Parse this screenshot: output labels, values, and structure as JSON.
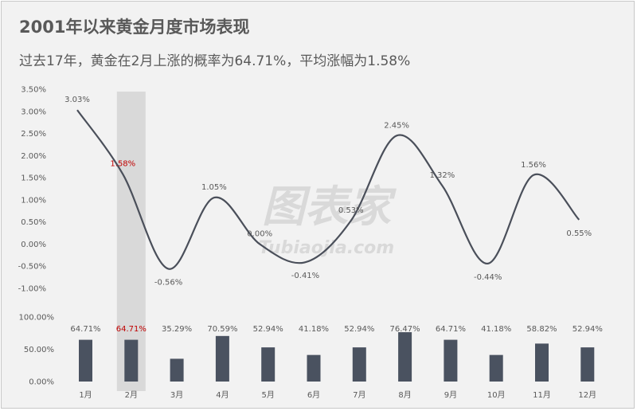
{
  "title": "2001年以来黄金月度市场表现",
  "subtitle": "过去17年，黄金在2月上涨的概率为64.71%，平均涨幅为1.58%",
  "watermark": {
    "main": "图表家",
    "sub": "Tubiaojia.com"
  },
  "colors": {
    "line": "#4a4f5a",
    "bar": "#4a5260",
    "highlight_band": "#d9d9d9",
    "highlight_text": "#c00000",
    "text": "#595959"
  },
  "chart_data": {
    "type": "line+bar",
    "categories": [
      "1月",
      "2月",
      "3月",
      "4月",
      "5月",
      "6月",
      "7月",
      "8月",
      "9月",
      "10月",
      "11月",
      "12月"
    ],
    "highlight_category": "2月",
    "series": [
      {
        "chart": "line",
        "values": [
          3.03,
          1.58,
          -0.56,
          1.05,
          0.0,
          -0.41,
          0.53,
          2.45,
          1.32,
          -0.44,
          1.56,
          0.55
        ],
        "labels": [
          "3.03%",
          "1.58%",
          "-0.56%",
          "1.05%",
          "0.00%",
          "-0.41%",
          "0.53%",
          "2.45%",
          "1.32%",
          "-0.44%",
          "1.56%",
          "0.55%"
        ],
        "ylim": [
          -1.0,
          3.5
        ],
        "yticks": [
          "3.50%",
          "3.00%",
          "2.50%",
          "2.00%",
          "1.50%",
          "1.00%",
          "0.50%",
          "0.00%",
          "-0.50%",
          "-1.00%"
        ]
      },
      {
        "chart": "bar",
        "values": [
          64.71,
          64.71,
          35.29,
          70.59,
          52.94,
          41.18,
          52.94,
          76.47,
          64.71,
          41.18,
          58.82,
          52.94
        ],
        "labels": [
          "64.71%",
          "64.71%",
          "35.29%",
          "70.59%",
          "52.94%",
          "41.18%",
          "52.94%",
          "76.47%",
          "64.71%",
          "41.18%",
          "58.82%",
          "52.94%"
        ],
        "ylim": [
          0,
          100
        ],
        "yticks": [
          "100.00%",
          "50.00%",
          "0.00%"
        ]
      }
    ],
    "legend": "none",
    "grid": false
  }
}
